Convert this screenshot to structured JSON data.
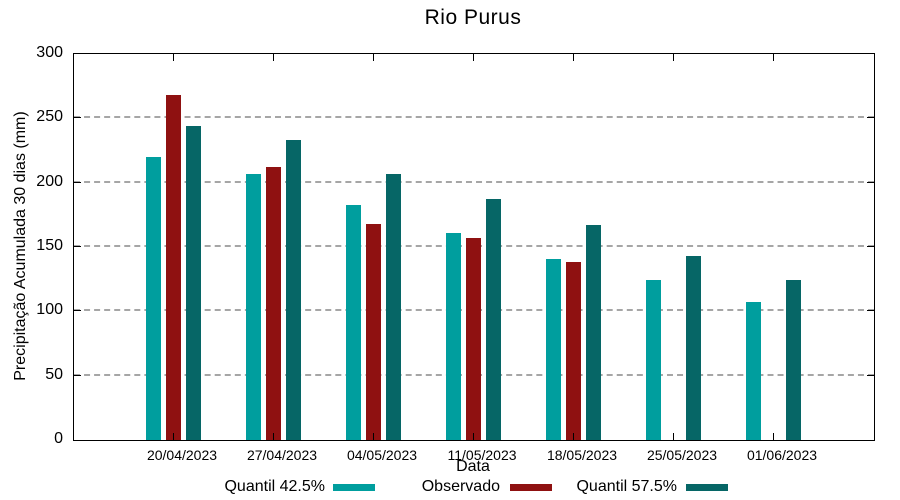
{
  "chart_data": {
    "type": "bar",
    "title": "Rio Purus",
    "xlabel": "Data",
    "ylabel": "Precipitação Acumulada 30 dias (mm)",
    "categories": [
      "20/04/2023",
      "27/04/2023",
      "04/05/2023",
      "11/05/2023",
      "18/05/2023",
      "25/05/2023",
      "01/06/2023"
    ],
    "series": [
      {
        "name": "Quantil 42.5%",
        "color": "#009E9E",
        "values": [
          220,
          207,
          183,
          161,
          141,
          124,
          107
        ]
      },
      {
        "name": "Observado",
        "color": "#8F1111",
        "values": [
          268,
          212,
          168,
          157,
          138,
          null,
          null
        ]
      },
      {
        "name": "Quantil 57.5%",
        "color": "#066666",
        "values": [
          244,
          233,
          207,
          187,
          167,
          143,
          124
        ]
      }
    ],
    "ylim": [
      0,
      300
    ],
    "yticks": [
      0,
      50,
      100,
      150,
      200,
      250,
      300
    ],
    "grid": "horizontal-dashed",
    "grid_color": "#a6a6a6",
    "legend_position": "bottom"
  }
}
